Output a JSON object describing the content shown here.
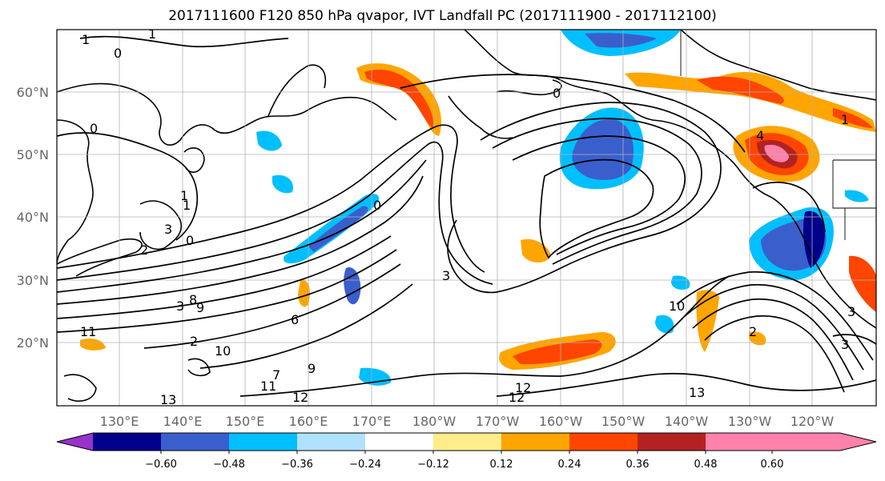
{
  "title": "2017111600 F120 850 hPa qvapor, IVT Landfall PC (2017111900 - 2017112100)",
  "lat_labels": [
    "60°N",
    "50°N",
    "40°N",
    "30°N",
    "20°N"
  ],
  "lon_labels": [
    "130°E",
    "140°E",
    "150°E",
    "160°E",
    "170°E",
    "180°W",
    "170°W",
    "160°W",
    "150°W",
    "140°W",
    "130°W",
    "120°W"
  ],
  "colorbar": {
    "ticks": [
      "−0.60",
      "−0.48",
      "−0.36",
      "−0.24",
      "−0.12",
      "0.12",
      "0.24",
      "0.36",
      "0.48",
      "0.60"
    ],
    "colors": [
      "#9932cc",
      "#00008b",
      "#3a5fcd",
      "#00bfff",
      "#b0e2ff",
      "#ffffff",
      "#ffec8b",
      "#ffa500",
      "#ff4500",
      "#b22222",
      "#ff82ab"
    ]
  },
  "contour_labels": [
    "1",
    "1",
    "0",
    "0",
    "1",
    "3",
    "0",
    "2",
    "3",
    "8",
    "9",
    "11",
    "2",
    "10",
    "6",
    "9",
    "7",
    "11",
    "12",
    "13",
    "0",
    "3",
    "0",
    "10",
    "12",
    "12",
    "13",
    "2",
    "3",
    "3",
    "4",
    "1",
    "1"
  ]
}
